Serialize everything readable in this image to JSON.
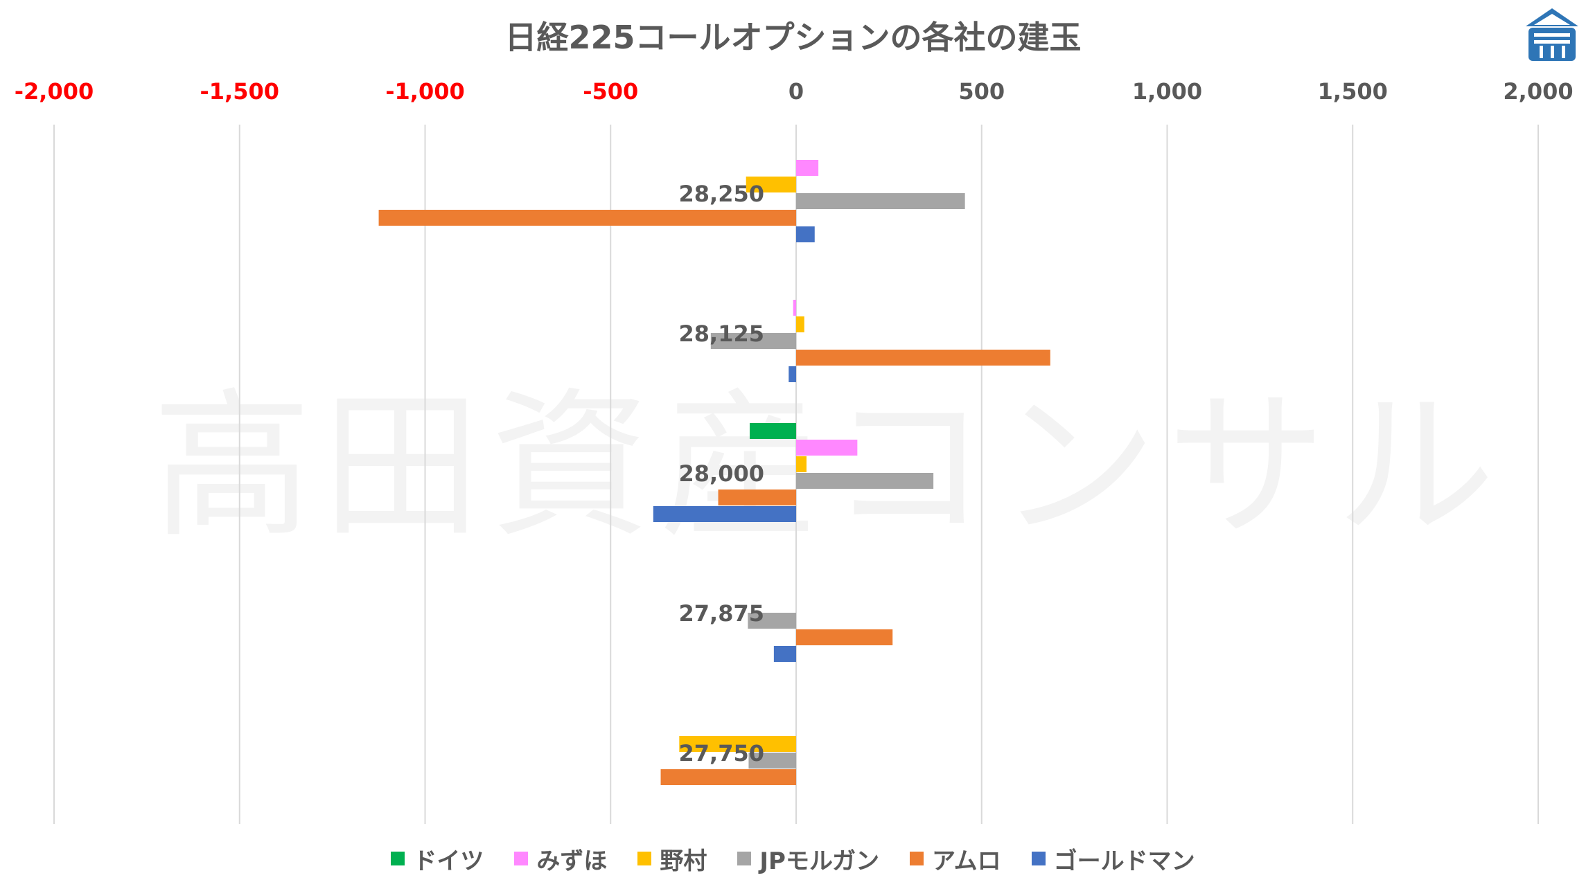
{
  "chart_data": {
    "type": "bar",
    "orientation": "horizontal",
    "title": "日経225コールオプションの各社の建玉",
    "watermark": "高田資産コンサル",
    "xlim": [
      -2000,
      2000
    ],
    "xticks": [
      -2000,
      -1500,
      -1000,
      -500,
      0,
      500,
      1000,
      1500,
      2000
    ],
    "xtick_labels": [
      "-2,000",
      "-1,500",
      "-1,000",
      "-500",
      "0",
      "500",
      "1,000",
      "1,500",
      "2,000"
    ],
    "negative_tick_color": "#ff0000",
    "positive_tick_color": "#595959",
    "grid": true,
    "legend_position": "bottom",
    "categories": [
      "28,250",
      "28,125",
      "28,000",
      "27,875",
      "27,750"
    ],
    "series": [
      {
        "name": "ドイツ",
        "color": "#00b050",
        "values": [
          0,
          0,
          -125,
          0,
          0
        ]
      },
      {
        "name": "みずほ",
        "color": "#ff88ff",
        "values": [
          60,
          -8,
          165,
          0,
          0
        ]
      },
      {
        "name": "野村",
        "color": "#ffc000",
        "values": [
          -135,
          22,
          28,
          0,
          -315
        ]
      },
      {
        "name": "JPモルガン",
        "color": "#a5a5a5",
        "values": [
          455,
          -230,
          370,
          -130,
          -128
        ]
      },
      {
        "name": "アムロ",
        "color": "#ed7d31",
        "values": [
          -1125,
          685,
          -210,
          260,
          -365
        ]
      },
      {
        "name": "ゴールドマン",
        "color": "#4472c4",
        "values": [
          50,
          -20,
          -385,
          -60,
          0
        ]
      }
    ]
  }
}
